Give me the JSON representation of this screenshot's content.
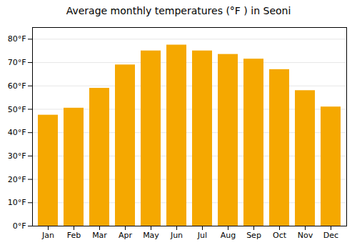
{
  "chart_data": {
    "type": "bar",
    "title": "Average monthly temperatures (°F ) in Seoni",
    "categories": [
      "Jan",
      "Feb",
      "Mar",
      "Apr",
      "May",
      "Jun",
      "Jul",
      "Aug",
      "Sep",
      "Oct",
      "Nov",
      "Dec"
    ],
    "values": [
      47.5,
      50.5,
      59.0,
      69.0,
      75.0,
      77.5,
      75.0,
      73.5,
      71.5,
      67.0,
      58.0,
      51.0
    ],
    "color": "#F5A800",
    "ylim": [
      0,
      85
    ],
    "yticks": [
      {
        "value": 0,
        "label": "0°F"
      },
      {
        "value": 10,
        "label": "10°F"
      },
      {
        "value": 20,
        "label": "20°F"
      },
      {
        "value": 30,
        "label": "30°F"
      },
      {
        "value": 40,
        "label": "40°F"
      },
      {
        "value": 50,
        "label": "50°F"
      },
      {
        "value": 60,
        "label": "60°F"
      },
      {
        "value": 70,
        "label": "70°F"
      },
      {
        "value": 80,
        "label": "80°F"
      }
    ],
    "grid": true
  }
}
